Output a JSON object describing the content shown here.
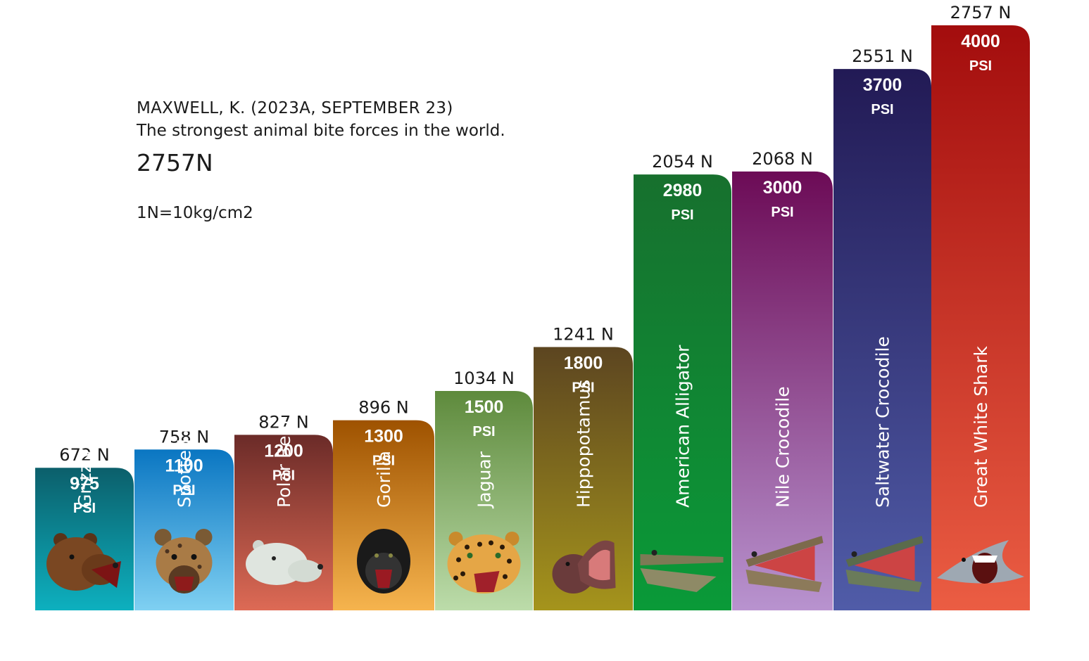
{
  "citation": {
    "author_line": "MAXWELL, K. (2023A, SEPTEMBER 23)",
    "title_line": "The strongest animal bite forces in the world.",
    "max_force": "2757N",
    "conversion": "1N=10kg/cm2"
  },
  "chart_data": {
    "type": "bar",
    "title": "",
    "xlabel": "",
    "ylabel": "",
    "ylim": [
      0,
      2757
    ],
    "grid": false,
    "unit_label": "PSI",
    "categories": [
      "Grizzly Bear",
      "Spotted Hyena",
      "Polar Bear",
      "Gorilla",
      "Jaguar",
      "Hippopotamus",
      "American Alligator",
      "Nile Crocodile",
      "Saltwater Crocodile",
      "Great White Shark"
    ],
    "series": [
      {
        "values": [
          672,
          758,
          827,
          896,
          1034,
          1241,
          2054,
          2068,
          2551,
          2757
        ]
      }
    ],
    "value_labels": [
      "672 N",
      "758 N",
      "827 N",
      "896 N",
      "1034 N",
      "1241 N",
      "2054 N",
      "2068 N",
      "2551 N",
      "2757 N"
    ],
    "psi_values": [
      "975",
      "1100",
      "1200",
      "1300",
      "1500",
      "1800",
      "2980",
      "3000",
      "3700",
      "4000"
    ],
    "colors": [
      [
        "#0c5f6b",
        "#0db0bf"
      ],
      [
        "#0a76c2",
        "#7fd0f2"
      ],
      [
        "#6b2b28",
        "#dd6a55"
      ],
      [
        "#9e5200",
        "#f6b44e"
      ],
      [
        "#5e8a3c",
        "#bcdcaa"
      ],
      [
        "#5c4520",
        "#a5941c"
      ],
      [
        "#17702e",
        "#0a9a38"
      ],
      [
        "#6c0b56",
        "#b893cf"
      ],
      [
        "#221a55",
        "#505ca8"
      ],
      [
        "#a30d0d",
        "#eb5d43"
      ]
    ],
    "icons": [
      "bear-head-icon",
      "hyena-head-icon",
      "polar-bear-head-icon",
      "gorilla-head-icon",
      "jaguar-head-icon",
      "hippo-head-icon",
      "alligator-head-icon",
      "crocodile-head-icon",
      "saltwater-crocodile-head-icon",
      "shark-head-icon"
    ]
  }
}
